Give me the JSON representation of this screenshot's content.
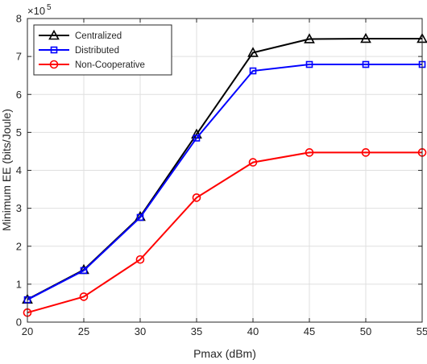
{
  "chart_data": {
    "type": "line",
    "xlabel": "Pmax (dBm)",
    "ylabel": "Minimum EE (bits/Joule)",
    "y_exponent_base": "×10",
    "y_exponent_power": "5",
    "xlim": [
      20,
      55
    ],
    "ylim": [
      0,
      8
    ],
    "xticks": [
      20,
      25,
      30,
      35,
      40,
      45,
      50,
      55
    ],
    "yticks": [
      0,
      1,
      2,
      3,
      4,
      5,
      6,
      7,
      8
    ],
    "grid": true,
    "legend_position": "top-left",
    "x": [
      20,
      25,
      30,
      35,
      40,
      45,
      50,
      55
    ],
    "series": [
      {
        "name": "Centralized",
        "color": "#000000",
        "marker": "triangle",
        "values": [
          0.6,
          1.38,
          2.78,
          4.95,
          7.1,
          7.46,
          7.47,
          7.47
        ]
      },
      {
        "name": "Distributed",
        "color": "#0000ff",
        "marker": "square",
        "values": [
          0.59,
          1.36,
          2.76,
          4.85,
          6.62,
          6.79,
          6.79,
          6.79
        ]
      },
      {
        "name": "Non-Cooperative",
        "color": "#ff0000",
        "marker": "circle",
        "values": [
          0.25,
          0.67,
          1.65,
          3.28,
          4.21,
          4.47,
          4.47,
          4.47
        ]
      }
    ]
  }
}
